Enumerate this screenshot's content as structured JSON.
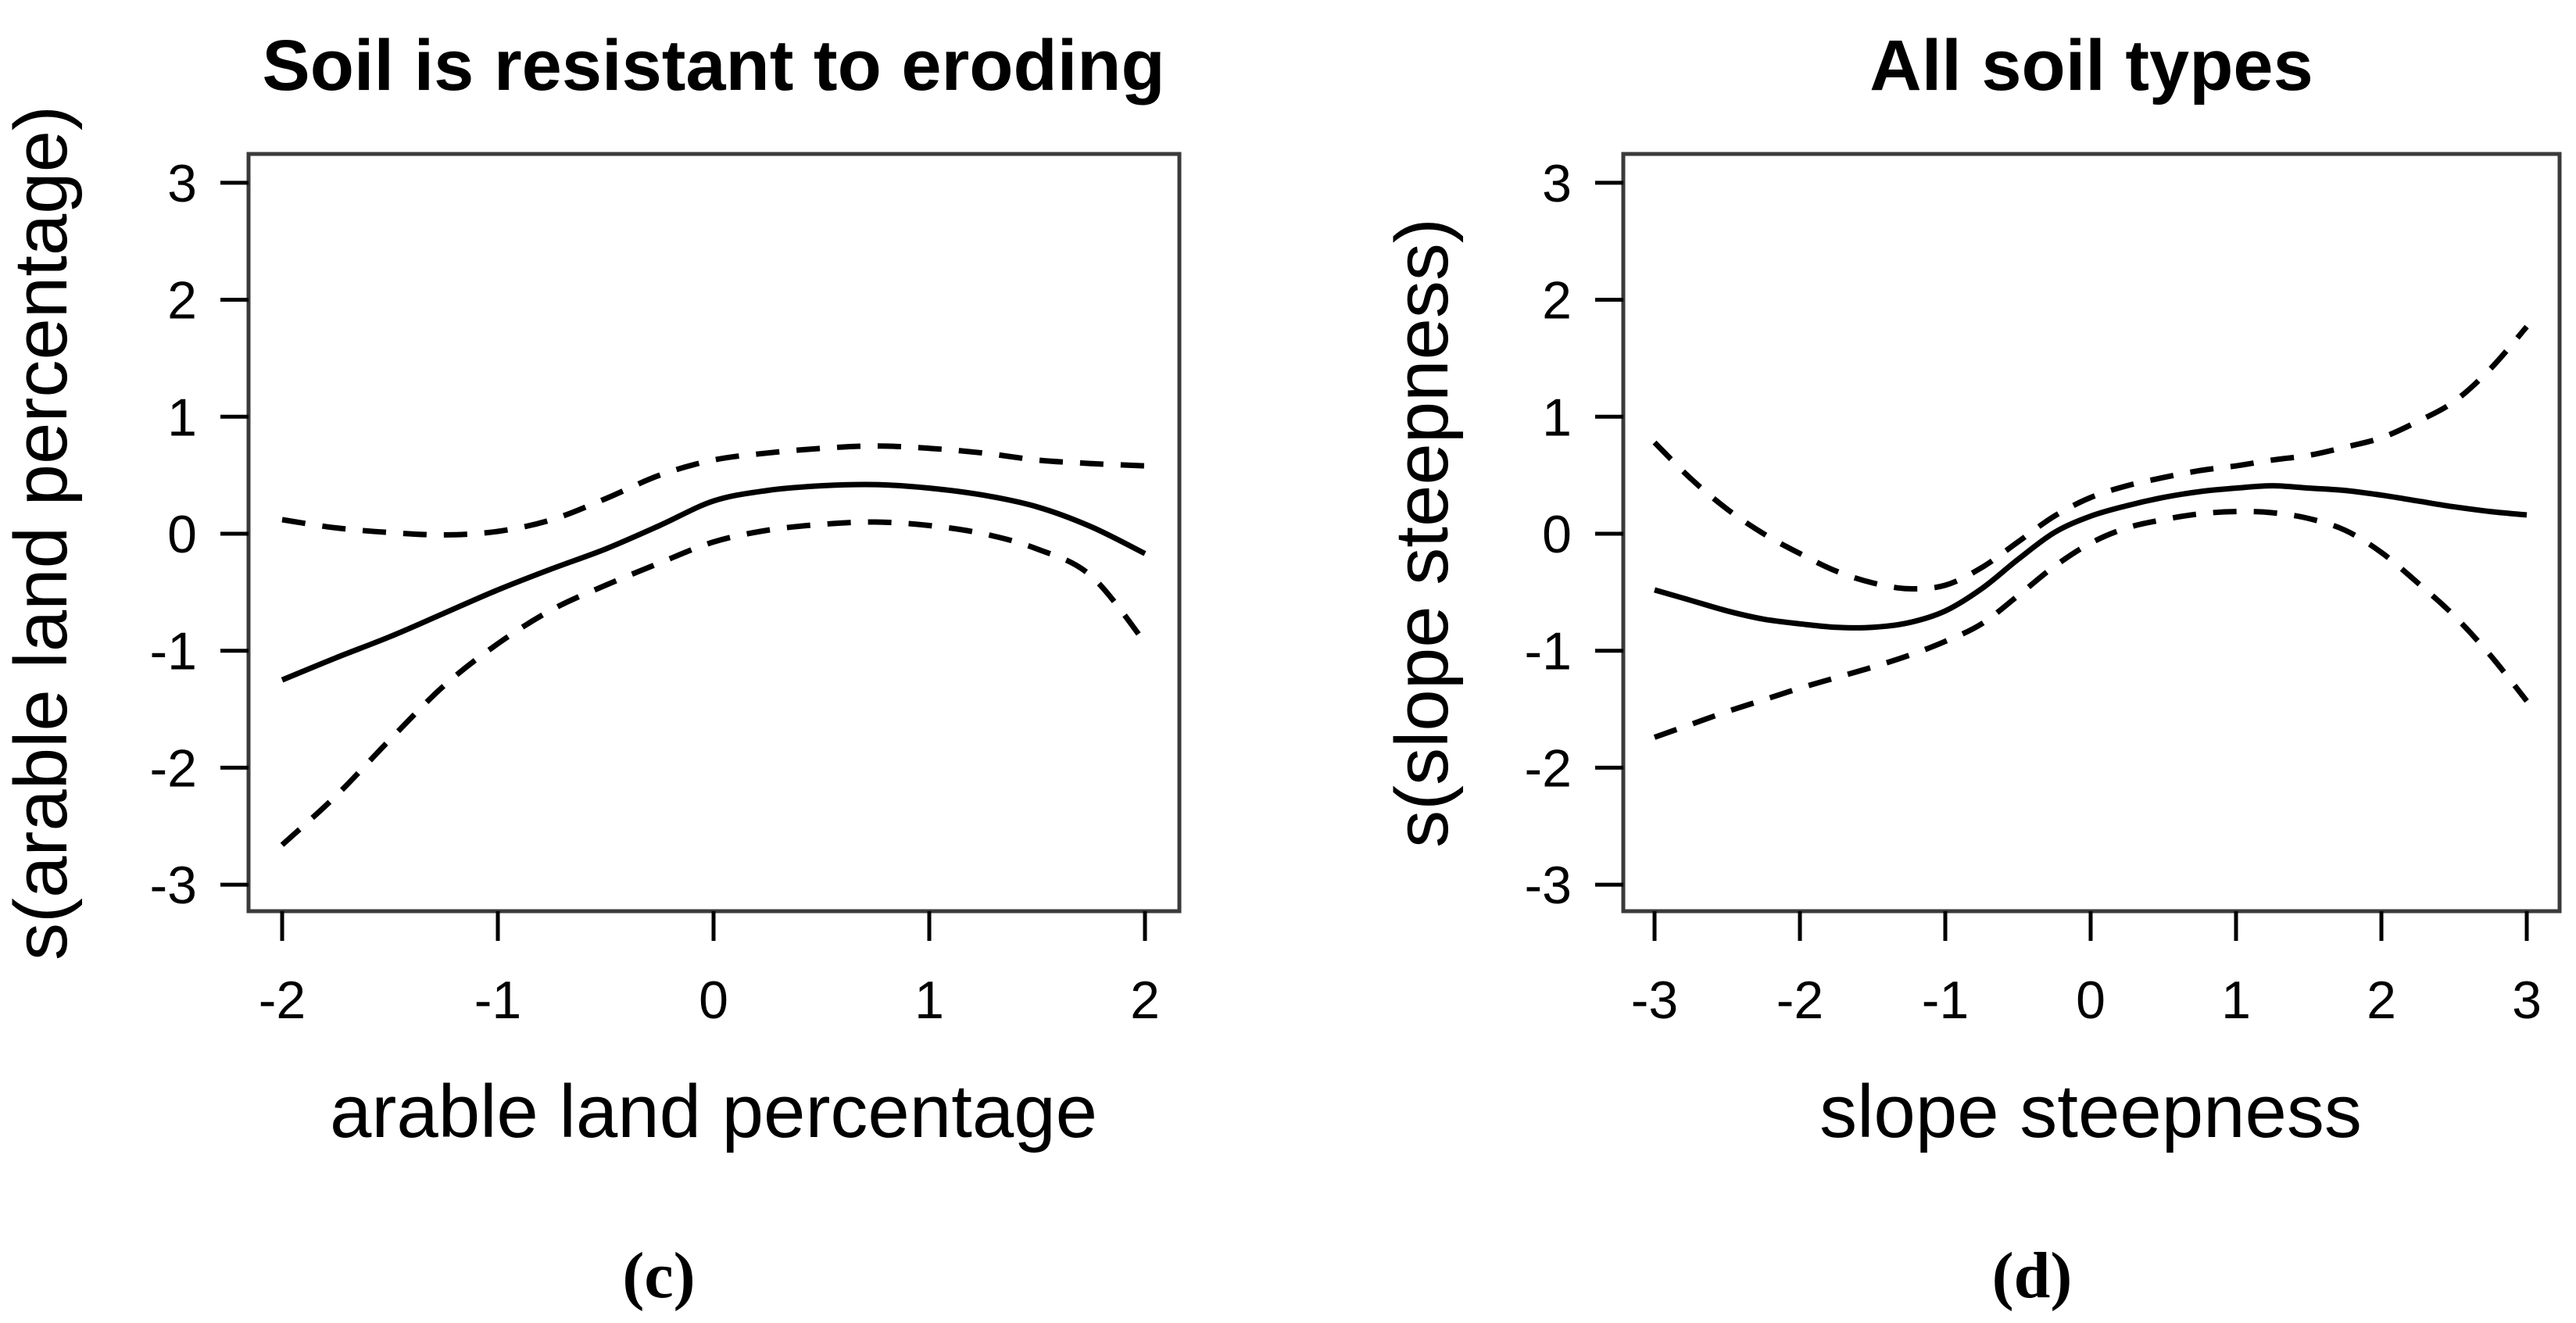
{
  "figure": {
    "background": "#ffffff",
    "ink_color": "#000000",
    "frame_color": "#3a3a3a"
  },
  "chart_data": [
    {
      "type": "line",
      "panel_tag": "(c)",
      "title": "Soil is resistant to eroding",
      "xlabel": "arable land percentage",
      "ylabel": "s(arable land percentage)",
      "xlim": [
        -2.16,
        2.16
      ],
      "ylim": [
        -3.24,
        3.25
      ],
      "x_ticks": [
        -2,
        -1,
        0,
        1,
        2
      ],
      "y_ticks": [
        3,
        2,
        1,
        0,
        -1,
        -2,
        -3
      ],
      "grid": false,
      "legend": "none",
      "series": [
        {
          "name": "smooth-estimate",
          "style": "solid",
          "x": [
            -2,
            -1.75,
            -1.5,
            -1.25,
            -1,
            -0.75,
            -0.5,
            -0.25,
            0,
            0.25,
            0.5,
            0.75,
            1,
            1.25,
            1.5,
            1.75,
            2
          ],
          "y": [
            -1.25,
            -1.06,
            -0.88,
            -0.68,
            -0.48,
            -0.3,
            -0.13,
            0.07,
            0.28,
            0.37,
            0.41,
            0.42,
            0.39,
            0.33,
            0.23,
            0.06,
            -0.17
          ]
        },
        {
          "name": "upper-95ci",
          "style": "dashed",
          "x": [
            -2,
            -1.75,
            -1.5,
            -1.25,
            -1,
            -0.75,
            -0.5,
            -0.25,
            0,
            0.25,
            0.5,
            0.75,
            1,
            1.25,
            1.5,
            1.75,
            2
          ],
          "y": [
            0.12,
            0.05,
            0.01,
            -0.01,
            0.02,
            0.12,
            0.3,
            0.5,
            0.63,
            0.69,
            0.73,
            0.75,
            0.73,
            0.69,
            0.63,
            0.6,
            0.58
          ]
        },
        {
          "name": "lower-95ci",
          "style": "dashed",
          "x": [
            -2,
            -1.75,
            -1.5,
            -1.25,
            -1,
            -0.75,
            -0.5,
            -0.25,
            0,
            0.25,
            0.5,
            0.75,
            1,
            1.25,
            1.5,
            1.75,
            2
          ],
          "y": [
            -2.66,
            -2.24,
            -1.76,
            -1.3,
            -0.94,
            -0.65,
            -0.44,
            -0.25,
            -0.07,
            0.03,
            0.08,
            0.1,
            0.07,
            0,
            -0.13,
            -0.36,
            -0.93
          ]
        }
      ]
    },
    {
      "type": "line",
      "panel_tag": "(d)",
      "title": "All soil types",
      "xlabel": "slope steepness",
      "ylabel": "s(slope steepness)",
      "xlim": [
        -3.22,
        3.23
      ],
      "ylim": [
        -3.24,
        3.25
      ],
      "x_ticks": [
        -3,
        -2,
        -1,
        0,
        1,
        2,
        3
      ],
      "y_ticks": [
        3,
        2,
        1,
        0,
        -1,
        -2,
        -3
      ],
      "grid": false,
      "legend": "none",
      "series": [
        {
          "name": "smooth-estimate",
          "style": "solid",
          "x": [
            -3,
            -2.75,
            -2.5,
            -2.25,
            -2,
            -1.75,
            -1.5,
            -1.25,
            -1,
            -0.75,
            -0.5,
            -0.25,
            0,
            0.25,
            0.5,
            0.75,
            1,
            1.25,
            1.5,
            1.75,
            2,
            2.25,
            2.5,
            2.75,
            3
          ],
          "y": [
            -0.48,
            -0.57,
            -0.66,
            -0.73,
            -0.77,
            -0.8,
            -0.8,
            -0.76,
            -0.66,
            -0.47,
            -0.22,
            0.01,
            0.15,
            0.24,
            0.31,
            0.36,
            0.39,
            0.41,
            0.39,
            0.37,
            0.33,
            0.28,
            0.23,
            0.19,
            0.16
          ]
        },
        {
          "name": "upper-95ci",
          "style": "dashed",
          "x": [
            -3,
            -2.75,
            -2.5,
            -2.25,
            -2,
            -1.75,
            -1.5,
            -1.25,
            -1,
            -0.75,
            -0.5,
            -0.25,
            0,
            0.25,
            0.5,
            0.75,
            1,
            1.25,
            1.5,
            1.75,
            2,
            2.25,
            2.5,
            2.75,
            3
          ],
          "y": [
            0.78,
            0.47,
            0.21,
            0,
            -0.17,
            -0.32,
            -0.42,
            -0.47,
            -0.44,
            -0.29,
            -0.07,
            0.15,
            0.31,
            0.41,
            0.48,
            0.54,
            0.58,
            0.63,
            0.67,
            0.74,
            0.82,
            0.96,
            1.13,
            1.41,
            1.77
          ]
        },
        {
          "name": "lower-95ci",
          "style": "dashed",
          "x": [
            -3,
            -2.75,
            -2.5,
            -2.25,
            -2,
            -1.75,
            -1.5,
            -1.25,
            -1,
            -0.75,
            -0.5,
            -0.25,
            0,
            0.25,
            0.5,
            0.75,
            1,
            1.25,
            1.5,
            1.75,
            2,
            2.25,
            2.5,
            2.75,
            3
          ],
          "y": [
            -1.74,
            -1.63,
            -1.52,
            -1.42,
            -1.32,
            -1.23,
            -1.14,
            -1.04,
            -0.92,
            -0.77,
            -0.53,
            -0.28,
            -0.08,
            0.05,
            0.12,
            0.17,
            0.19,
            0.18,
            0.13,
            0.03,
            -0.16,
            -0.42,
            -0.7,
            -1.04,
            -1.43
          ]
        }
      ]
    }
  ]
}
